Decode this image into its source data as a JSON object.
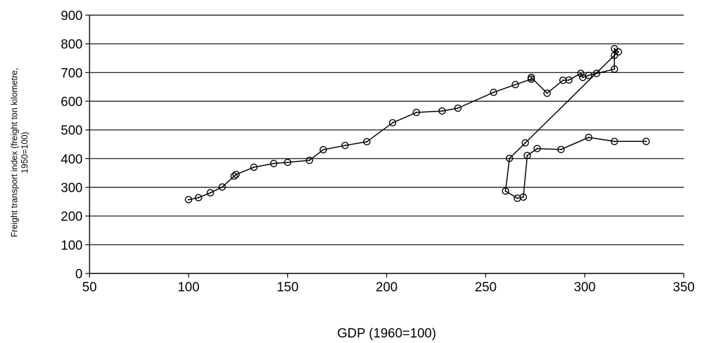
{
  "chart_data": {
    "type": "scatter",
    "title": "",
    "xlabel": "GDP (1960=100)",
    "ylabel_lines": [
      "Freight transport index (freight ton kilometre,",
      "1950=100)"
    ],
    "xlim": [
      50,
      350
    ],
    "ylim": [
      0,
      900
    ],
    "xticks": [
      50,
      100,
      150,
      200,
      250,
      300,
      350
    ],
    "yticks": [
      0,
      100,
      200,
      300,
      400,
      500,
      600,
      700,
      800,
      900
    ],
    "grid": "horizontal",
    "legend": "none",
    "line_color": "#000000",
    "series": [
      {
        "x": [
          100,
          105,
          111,
          117,
          123,
          124,
          133,
          143,
          150,
          161,
          168,
          179,
          190,
          203,
          215,
          228,
          236,
          254,
          265,
          273,
          273,
          281,
          289,
          292,
          298,
          299,
          302,
          306,
          315,
          315,
          317,
          315,
          270,
          262,
          260,
          266,
          269,
          271,
          276,
          288,
          302,
          315,
          331
        ],
        "y": [
          257,
          264,
          281,
          301,
          339,
          345,
          370,
          383,
          387,
          394,
          431,
          446,
          459,
          525,
          561,
          566,
          576,
          631,
          658,
          677,
          683,
          628,
          673,
          674,
          697,
          683,
          690,
          697,
          712,
          783,
          772,
          760,
          455,
          401,
          287,
          262,
          266,
          411,
          435,
          432,
          474,
          460,
          460
        ]
      }
    ]
  }
}
